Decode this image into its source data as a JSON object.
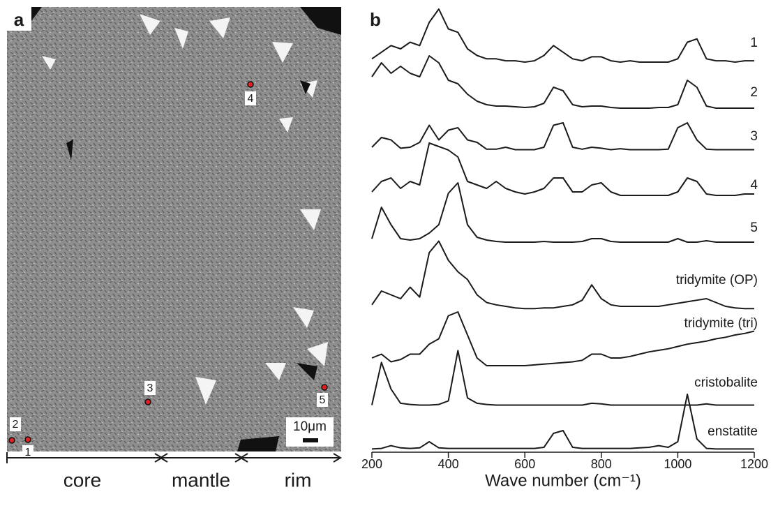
{
  "panel_a": {
    "label": "a",
    "points": [
      "1",
      "2",
      "3",
      "4",
      "5"
    ],
    "scale_bar": "10μm",
    "regions": [
      "core",
      "mantle",
      "rim"
    ]
  },
  "chart_data": {
    "type": "line",
    "panel_label": "b",
    "xlabel": "Wave number (cm⁻¹)",
    "xlim": [
      200,
      1200
    ],
    "xticks": [
      200,
      400,
      600,
      800,
      1000,
      1200
    ],
    "x": [
      200,
      225,
      250,
      275,
      300,
      325,
      350,
      375,
      400,
      425,
      450,
      475,
      500,
      525,
      550,
      575,
      600,
      625,
      650,
      675,
      700,
      725,
      750,
      775,
      800,
      825,
      850,
      875,
      900,
      925,
      950,
      975,
      1000,
      1025,
      1050,
      1075,
      1100,
      1125,
      1150,
      1175,
      1200
    ],
    "series": [
      {
        "name": "1",
        "color": "#1a1a1a",
        "values": [
          0.25,
          0.35,
          0.45,
          0.4,
          0.5,
          0.45,
          0.8,
          1.0,
          0.7,
          0.65,
          0.4,
          0.3,
          0.25,
          0.25,
          0.22,
          0.22,
          0.2,
          0.22,
          0.3,
          0.45,
          0.35,
          0.25,
          0.22,
          0.28,
          0.28,
          0.22,
          0.2,
          0.22,
          0.2,
          0.2,
          0.2,
          0.2,
          0.25,
          0.5,
          0.55,
          0.25,
          0.22,
          0.22,
          0.2,
          0.22,
          0.22
        ]
      },
      {
        "name": "2",
        "color": "#1a1a1a",
        "values": [
          0.5,
          0.7,
          0.55,
          0.65,
          0.55,
          0.5,
          0.8,
          0.7,
          0.45,
          0.4,
          0.25,
          0.15,
          0.1,
          0.08,
          0.08,
          0.07,
          0.06,
          0.07,
          0.12,
          0.35,
          0.3,
          0.1,
          0.07,
          0.08,
          0.08,
          0.06,
          0.05,
          0.05,
          0.05,
          0.05,
          0.06,
          0.06,
          0.1,
          0.45,
          0.35,
          0.08,
          0.05,
          0.05,
          0.05,
          0.05,
          0.05
        ]
      },
      {
        "name": "3",
        "color": "#1a1a1a",
        "values": [
          0.1,
          0.3,
          0.25,
          0.08,
          0.1,
          0.2,
          0.55,
          0.25,
          0.45,
          0.5,
          0.25,
          0.2,
          0.06,
          0.06,
          0.1,
          0.05,
          0.05,
          0.05,
          0.1,
          0.55,
          0.6,
          0.1,
          0.06,
          0.1,
          0.08,
          0.05,
          0.07,
          0.05,
          0.05,
          0.05,
          0.05,
          0.06,
          0.5,
          0.6,
          0.25,
          0.06,
          0.05,
          0.05,
          0.05,
          0.05,
          0.05
        ]
      },
      {
        "name": "4",
        "color": "#1a1a1a",
        "values": [
          0.25,
          0.4,
          0.45,
          0.3,
          0.4,
          0.35,
          0.95,
          0.9,
          0.85,
          0.75,
          0.4,
          0.35,
          0.3,
          0.4,
          0.3,
          0.25,
          0.22,
          0.25,
          0.3,
          0.45,
          0.45,
          0.25,
          0.25,
          0.35,
          0.38,
          0.25,
          0.2,
          0.2,
          0.2,
          0.2,
          0.2,
          0.2,
          0.25,
          0.45,
          0.4,
          0.22,
          0.2,
          0.2,
          0.2,
          0.22,
          0.22
        ]
      },
      {
        "name": "5",
        "color": "#1a1a1a",
        "values": [
          0.1,
          0.55,
          0.3,
          0.1,
          0.08,
          0.1,
          0.18,
          0.3,
          0.75,
          0.9,
          0.3,
          0.12,
          0.08,
          0.06,
          0.05,
          0.05,
          0.05,
          0.05,
          0.06,
          0.05,
          0.05,
          0.05,
          0.06,
          0.1,
          0.1,
          0.06,
          0.05,
          0.05,
          0.05,
          0.05,
          0.05,
          0.05,
          0.1,
          0.05,
          0.05,
          0.07,
          0.05,
          0.05,
          0.05,
          0.05,
          0.05
        ]
      },
      {
        "name": "tridymite (OP)",
        "color": "#1a1a1a",
        "values": [
          0.12,
          0.3,
          0.25,
          0.2,
          0.35,
          0.22,
          0.8,
          0.95,
          0.7,
          0.55,
          0.45,
          0.25,
          0.15,
          0.12,
          0.1,
          0.08,
          0.07,
          0.07,
          0.08,
          0.08,
          0.1,
          0.12,
          0.18,
          0.38,
          0.2,
          0.12,
          0.1,
          0.1,
          0.1,
          0.1,
          0.1,
          0.12,
          0.14,
          0.16,
          0.18,
          0.2,
          0.15,
          0.1,
          0.08,
          0.07,
          0.07
        ]
      },
      {
        "name": "tridymite (tri)",
        "color": "#1a1a1a",
        "values": [
          0.2,
          0.25,
          0.15,
          0.18,
          0.25,
          0.25,
          0.38,
          0.45,
          0.75,
          0.8,
          0.5,
          0.2,
          0.1,
          0.1,
          0.1,
          0.1,
          0.1,
          0.11,
          0.12,
          0.13,
          0.14,
          0.15,
          0.17,
          0.25,
          0.25,
          0.2,
          0.2,
          0.22,
          0.25,
          0.28,
          0.3,
          0.32,
          0.35,
          0.38,
          0.4,
          0.42,
          0.45,
          0.47,
          0.5,
          0.52,
          0.55
        ]
      },
      {
        "name": "cristobalite",
        "color": "#1a1a1a",
        "values": [
          0.03,
          0.75,
          0.3,
          0.06,
          0.04,
          0.03,
          0.03,
          0.04,
          0.1,
          0.95,
          0.15,
          0.06,
          0.04,
          0.03,
          0.03,
          0.03,
          0.03,
          0.03,
          0.03,
          0.03,
          0.03,
          0.03,
          0.03,
          0.06,
          0.05,
          0.03,
          0.03,
          0.03,
          0.03,
          0.03,
          0.03,
          0.03,
          0.03,
          0.03,
          0.03,
          0.05,
          0.03,
          0.03,
          0.03,
          0.03,
          0.03
        ]
      },
      {
        "name": "enstatite",
        "color": "#1a1a1a",
        "values": [
          0.02,
          0.03,
          0.08,
          0.04,
          0.03,
          0.04,
          0.15,
          0.04,
          0.03,
          0.03,
          0.03,
          0.03,
          0.03,
          0.03,
          0.03,
          0.03,
          0.03,
          0.03,
          0.05,
          0.3,
          0.35,
          0.05,
          0.03,
          0.03,
          0.03,
          0.03,
          0.03,
          0.03,
          0.04,
          0.05,
          0.08,
          0.05,
          0.15,
          1.0,
          0.2,
          0.03,
          0.02,
          0.02,
          0.02,
          0.02,
          0.02
        ]
      }
    ]
  }
}
